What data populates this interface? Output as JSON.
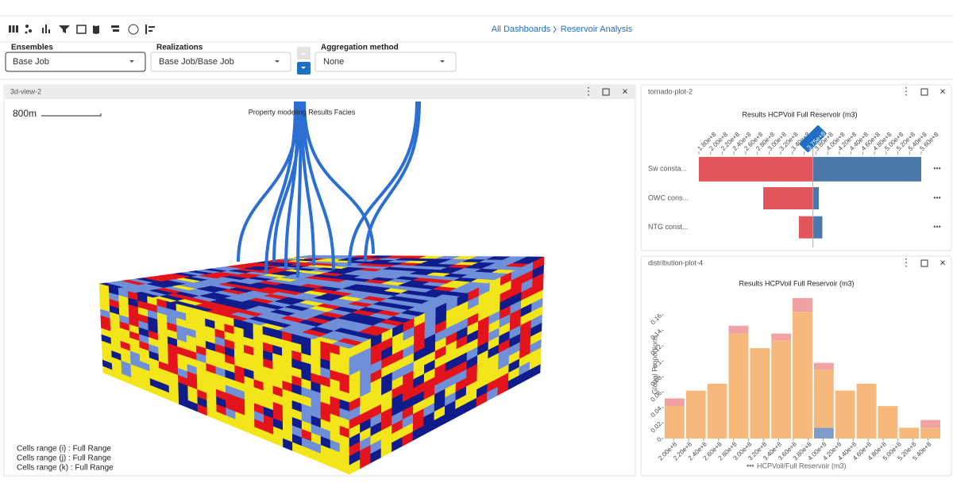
{
  "toolbar": {
    "breadcrumb": [
      "All Dashboards",
      "Reservoir Analysis"
    ]
  },
  "filters": [
    {
      "label": "Ensembles",
      "value": "Base Job"
    },
    {
      "label": "Realizations",
      "value": "Base Job/Base Job"
    },
    {
      "label": "Aggregation method",
      "value": "None"
    }
  ],
  "view_3d": {
    "panel_title": "3d-view-2",
    "scale_label": "800m",
    "title": "Property modeling Results Facies",
    "cell_ranges": [
      "Cells range (i) : Full Range",
      "Cells range (j) : Full Range",
      "Cells range (k) : Full Range"
    ]
  },
  "chart_data": [
    {
      "type": "tornado",
      "panel_title": "tornado-plot-2",
      "title": "Results HCPVoil Full Reservoir (m3)",
      "categories": [
        "Sw consta...",
        "OWC cons...",
        "NTG const..."
      ],
      "reference": {
        "value": 375000000,
        "label": "3.75e+8"
      },
      "series": [
        {
          "color": "#e1575b",
          "values": [
            180000000,
            290000000,
            351000000
          ]
        },
        {
          "color": "#4b78a8",
          "values": [
            560000000,
            385000000,
            391000000
          ]
        }
      ],
      "xlim": [
        180000000,
        560000000
      ],
      "xticks": [
        {
          "value": 180000000,
          "label": "1.80e+8"
        },
        {
          "value": 200000000,
          "label": "2.00e+8"
        },
        {
          "value": 220000000,
          "label": "2.20e+8"
        },
        {
          "value": 240000000,
          "label": "2.40e+8"
        },
        {
          "value": 260000000,
          "label": "2.60e+8"
        },
        {
          "value": 280000000,
          "label": "2.80e+8"
        },
        {
          "value": 300000000,
          "label": "3.00e+8"
        },
        {
          "value": 320000000,
          "label": "3.20e+8"
        },
        {
          "value": 340000000,
          "label": "3.40e+8"
        },
        {
          "value": 360000000,
          "label": "3.60e+8"
        },
        {
          "value": 380000000,
          "label": "3.80e+8"
        },
        {
          "value": 400000000,
          "label": "4.00e+8"
        },
        {
          "value": 420000000,
          "label": "4.20e+8"
        },
        {
          "value": 440000000,
          "label": "4.40e+8"
        },
        {
          "value": 460000000,
          "label": "4.60e+8"
        },
        {
          "value": 480000000,
          "label": "4.80e+8"
        },
        {
          "value": 500000000,
          "label": "5.00e+8"
        },
        {
          "value": 520000000,
          "label": "5.20e+8"
        },
        {
          "value": 540000000,
          "label": "5.40e+8"
        },
        {
          "value": 560000000,
          "label": "5.60e+8"
        }
      ]
    },
    {
      "type": "histogram",
      "panel_title": "distribution-plot-4",
      "title": "Results HCPVoil Full Reservoir (m3)",
      "x_label": "HCPVoil/Full Reservoir (m3)",
      "y_label": "Global Proportions",
      "bins": [
        187000000,
        215500000,
        244000000,
        272500000,
        301000000,
        329500000,
        358000000,
        386500000,
        415000000,
        443500000,
        472000000,
        500500000,
        529000000,
        557500000
      ],
      "series": [
        {
          "color": "#7f9dc9",
          "values": [
            0,
            0,
            0,
            0,
            0,
            0,
            0,
            0.014,
            0,
            0,
            0,
            0,
            0
          ]
        },
        {
          "color": "#f7b87c",
          "values": [
            0.042,
            0.062,
            0.071,
            0.136,
            0.117,
            0.127,
            0.164,
            0.075,
            0.062,
            0.071,
            0.042,
            0.014,
            0.014
          ]
        },
        {
          "color": "#f1a2a2",
          "values": [
            0.01,
            0,
            0,
            0.01,
            0,
            0.009,
            0.018,
            0.009,
            0,
            0,
            0,
            0,
            0.01
          ]
        }
      ],
      "xlim": [
        187000000,
        557500000
      ],
      "ylim": [
        0,
        0.19
      ],
      "yticks": [
        0,
        0.02,
        0.04,
        0.06,
        0.08,
        0.1,
        0.12,
        0.14,
        0.16
      ],
      "xticks": [
        {
          "value": 200000000,
          "label": "2.00e+8"
        },
        {
          "value": 220000000,
          "label": "2.20e+8"
        },
        {
          "value": 240000000,
          "label": "2.40e+8"
        },
        {
          "value": 260000000,
          "label": "2.60e+8"
        },
        {
          "value": 280000000,
          "label": "2.80e+8"
        },
        {
          "value": 300000000,
          "label": "3.00e+8"
        },
        {
          "value": 320000000,
          "label": "3.20e+8"
        },
        {
          "value": 340000000,
          "label": "3.40e+8"
        },
        {
          "value": 360000000,
          "label": "3.60e+8"
        },
        {
          "value": 380000000,
          "label": "3.80e+8"
        },
        {
          "value": 400000000,
          "label": "4.00e+8"
        },
        {
          "value": 420000000,
          "label": "4.20e+8"
        },
        {
          "value": 440000000,
          "label": "4.40e+8"
        },
        {
          "value": 460000000,
          "label": "4.60e+8"
        },
        {
          "value": 480000000,
          "label": "4.80e+8"
        },
        {
          "value": 500000000,
          "label": "5.00e+8"
        },
        {
          "value": 520000000,
          "label": "5.20e+8"
        },
        {
          "value": 540000000,
          "label": "5.40e+8"
        }
      ]
    }
  ]
}
